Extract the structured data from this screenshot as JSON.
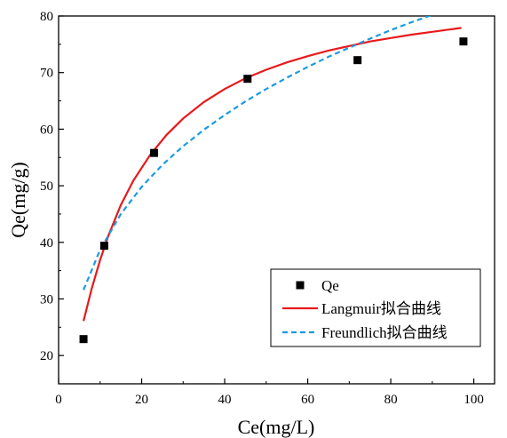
{
  "chart_data": {
    "type": "scatter",
    "title": "",
    "xlabel": "Ce(mg/L)",
    "ylabel": "Qe(mg/g)",
    "xlim": [
      0,
      105
    ],
    "ylim": [
      15,
      80
    ],
    "xticks": [
      0,
      20,
      40,
      60,
      80,
      100
    ],
    "yticks": [
      20,
      30,
      40,
      50,
      60,
      70,
      80
    ],
    "grid": false,
    "legend_position": "bottom-right",
    "series": [
      {
        "name": "Qe",
        "kind": "scatter",
        "marker": "square",
        "color": "#000000",
        "x": [
          6.0,
          11.0,
          23.0,
          45.5,
          72.0,
          97.5
        ],
        "y": [
          22.9,
          39.4,
          55.8,
          68.9,
          72.2,
          75.5
        ]
      },
      {
        "name": "Langmuir拟合曲线",
        "kind": "line",
        "style": "solid",
        "color": "#e8191c",
        "x": [
          6,
          8,
          10,
          12,
          15,
          18,
          22,
          26,
          30,
          35,
          40,
          45,
          50,
          55,
          60,
          65,
          70,
          75,
          80,
          85,
          90,
          97
        ],
        "y": [
          26.1,
          31.9,
          36.9,
          41.2,
          46.6,
          50.9,
          55.4,
          59.0,
          61.9,
          64.8,
          67.1,
          69.0,
          70.5,
          71.8,
          72.9,
          73.9,
          74.7,
          75.5,
          76.1,
          76.7,
          77.2,
          77.9
        ]
      },
      {
        "name": "Freundlich拟合曲线",
        "kind": "line",
        "style": "dashed",
        "color": "#1b9be0",
        "x": [
          6,
          10,
          15,
          20,
          25,
          30,
          35,
          40,
          45,
          50,
          55,
          60,
          65,
          70,
          75,
          80,
          85,
          90,
          96
        ],
        "y": [
          31.6,
          38.7,
          45.0,
          49.8,
          53.7,
          57.0,
          59.9,
          62.5,
          64.9,
          67.1,
          69.1,
          71.0,
          72.8,
          74.4,
          76.0,
          77.5,
          78.9,
          80.2,
          81.7
        ]
      }
    ]
  }
}
